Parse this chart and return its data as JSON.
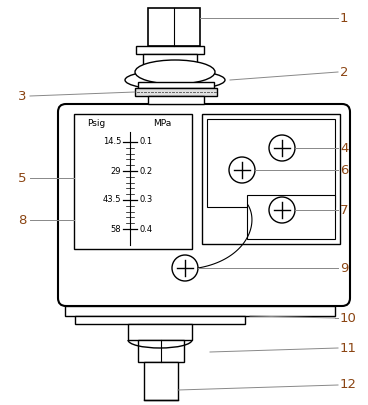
{
  "bg_color": "#ffffff",
  "line_color": "#000000",
  "label_color": "#8B4513",
  "label_fontsize": 9.5,
  "scale_fontsize": 6.0,
  "header_fontsize": 6.5,
  "psig_labels": [
    "14.5",
    "29",
    "43.5",
    "58"
  ],
  "mpa_labels": [
    "0.1",
    "0.2",
    "0.3",
    "0.4"
  ],
  "psig_header": "Psig",
  "mpa_header": "MPa",
  "numbers": [
    "1",
    "2",
    "3",
    "4",
    "5",
    "6",
    "7",
    "8",
    "9",
    "10",
    "11",
    "12"
  ]
}
